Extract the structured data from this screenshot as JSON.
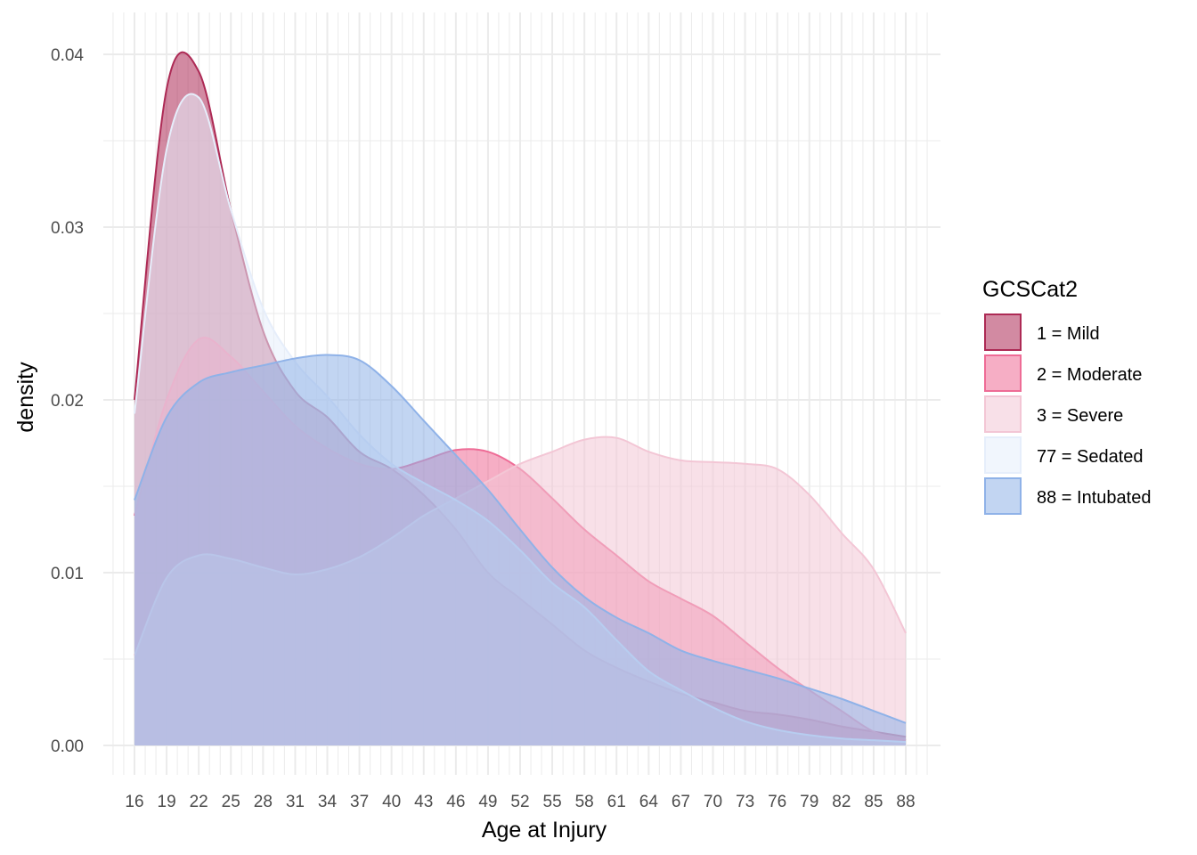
{
  "chart_data": {
    "type": "area",
    "subtype": "density",
    "title": "",
    "xlabel": "Age at Injury",
    "ylabel": "density",
    "xlim": [
      16,
      88
    ],
    "ylim": [
      0,
      0.04
    ],
    "x_ticks": [
      16,
      19,
      22,
      25,
      28,
      31,
      34,
      37,
      40,
      43,
      46,
      49,
      52,
      55,
      58,
      61,
      64,
      67,
      70,
      73,
      76,
      79,
      82,
      85,
      88
    ],
    "x_tick_labels": [
      "16",
      "19",
      "22",
      "25",
      "28",
      "31",
      "34",
      "37",
      "40",
      "43",
      "46",
      "49",
      "52",
      "55",
      "58",
      "61",
      "64",
      "67",
      "70",
      "73",
      "76",
      "79",
      "82",
      "85",
      "88"
    ],
    "y_ticks": [
      0,
      0.01,
      0.02,
      0.03,
      0.04
    ],
    "y_tick_labels": [
      "0.00",
      "0.01",
      "0.02",
      "0.03",
      "0.04"
    ],
    "grid": true,
    "legend": {
      "title": "GCSCat2",
      "position": "right"
    },
    "x": [
      16,
      19,
      22,
      25,
      28,
      31,
      34,
      37,
      40,
      43,
      46,
      49,
      52,
      55,
      58,
      61,
      64,
      67,
      70,
      73,
      76,
      79,
      82,
      85,
      88
    ],
    "series": [
      {
        "name": "1 = Mild",
        "fill": "#AD2A55",
        "stroke": "#AD2A55",
        "values": [
          0.02,
          0.038,
          0.039,
          0.031,
          0.024,
          0.0205,
          0.019,
          0.017,
          0.016,
          0.0145,
          0.0125,
          0.01,
          0.0085,
          0.007,
          0.0055,
          0.0045,
          0.0037,
          0.003,
          0.0025,
          0.002,
          0.0018,
          0.0015,
          0.0011,
          0.0008,
          0.0005
        ]
      },
      {
        "name": "2 = Moderate",
        "fill": "#EE6C96",
        "stroke": "#EE6C96",
        "values": [
          0.0133,
          0.02,
          0.0235,
          0.0225,
          0.0205,
          0.0185,
          0.0172,
          0.0163,
          0.016,
          0.0165,
          0.0171,
          0.017,
          0.016,
          0.0143,
          0.0125,
          0.011,
          0.0095,
          0.0085,
          0.0075,
          0.006,
          0.0045,
          0.0032,
          0.002,
          0.0008,
          0.0003
        ]
      },
      {
        "name": "3 = Severe",
        "fill": "#F3C6D5",
        "stroke": "#F3C6D5",
        "values": [
          0.0052,
          0.0097,
          0.011,
          0.0108,
          0.0103,
          0.0099,
          0.0102,
          0.0109,
          0.012,
          0.0133,
          0.0143,
          0.0153,
          0.0163,
          0.017,
          0.0177,
          0.0178,
          0.017,
          0.0165,
          0.0164,
          0.0163,
          0.016,
          0.0145,
          0.0123,
          0.0102,
          0.0065
        ]
      },
      {
        "name": "77 = Sedated",
        "fill": "#E6EEFB",
        "stroke": "#E6EEFB",
        "values": [
          0.0192,
          0.0345,
          0.0375,
          0.031,
          0.0253,
          0.0222,
          0.0202,
          0.018,
          0.0163,
          0.0152,
          0.0142,
          0.013,
          0.0113,
          0.0094,
          0.008,
          0.0061,
          0.0043,
          0.0032,
          0.0022,
          0.0014,
          0.0009,
          0.0006,
          0.0004,
          0.0003,
          0.0002
        ]
      },
      {
        "name": "88 = Intubated",
        "fill": "#8FB2E8",
        "stroke": "#8FB2E8",
        "values": [
          0.0142,
          0.019,
          0.021,
          0.0216,
          0.022,
          0.0224,
          0.0226,
          0.0223,
          0.0208,
          0.0188,
          0.0168,
          0.0148,
          0.0125,
          0.0103,
          0.0086,
          0.0074,
          0.0065,
          0.0055,
          0.0049,
          0.0044,
          0.0039,
          0.0033,
          0.0027,
          0.002,
          0.0013
        ]
      }
    ]
  }
}
